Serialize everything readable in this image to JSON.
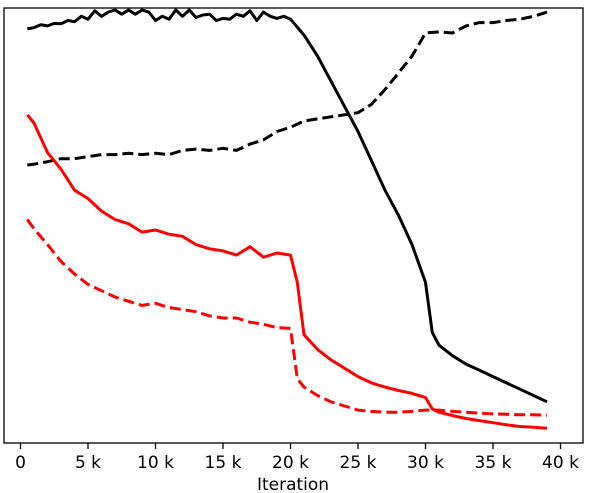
{
  "chart_data": {
    "type": "line",
    "title": "",
    "xlabel": "Iteration",
    "ylabel": "",
    "xlim": [
      -2000,
      40500
    ],
    "ylim": [
      0,
      1
    ],
    "grid": false,
    "legend": "none",
    "x_ticks": [
      {
        "value": 0,
        "label": "0"
      },
      {
        "value": 5000,
        "label": "5 k"
      },
      {
        "value": 10000,
        "label": "10 k"
      },
      {
        "value": 15000,
        "label": "15 k"
      },
      {
        "value": 20000,
        "label": "20 k"
      },
      {
        "value": 25000,
        "label": "25 k"
      },
      {
        "value": 30000,
        "label": "30 k"
      },
      {
        "value": 35000,
        "label": "35 k"
      },
      {
        "value": 40000,
        "label": "40 k"
      }
    ],
    "series": [
      {
        "color": "#000000",
        "dash": false,
        "points": [
          [
            500,
            0.955
          ],
          [
            1000,
            0.958
          ],
          [
            1500,
            0.965
          ],
          [
            2000,
            0.962
          ],
          [
            2500,
            0.968
          ],
          [
            3000,
            0.967
          ],
          [
            3500,
            0.975
          ],
          [
            4000,
            0.972
          ],
          [
            4500,
            0.985
          ],
          [
            5000,
            0.978
          ],
          [
            5500,
            0.998
          ],
          [
            6000,
            0.985
          ],
          [
            6500,
            0.995
          ],
          [
            7000,
            1.0
          ],
          [
            7500,
            0.99
          ],
          [
            8000,
            1.0
          ],
          [
            8500,
            0.99
          ],
          [
            9000,
            1.0
          ],
          [
            9500,
            0.995
          ],
          [
            10000,
            0.975
          ],
          [
            10500,
            0.985
          ],
          [
            11000,
            0.978
          ],
          [
            11500,
            1.0
          ],
          [
            12000,
            0.985
          ],
          [
            12500,
            1.0
          ],
          [
            13000,
            0.982
          ],
          [
            13500,
            0.988
          ],
          [
            14000,
            0.99
          ],
          [
            14500,
            0.975
          ],
          [
            15000,
            0.98
          ],
          [
            15500,
            0.978
          ],
          [
            16000,
            0.99
          ],
          [
            16500,
            0.985
          ],
          [
            17000,
            0.998
          ],
          [
            17500,
            0.975
          ],
          [
            18000,
            0.995
          ],
          [
            18500,
            0.985
          ],
          [
            19000,
            0.98
          ],
          [
            19500,
            0.985
          ],
          [
            20000,
            0.978
          ],
          [
            21000,
            0.94
          ],
          [
            22000,
            0.89
          ],
          [
            23000,
            0.83
          ],
          [
            24000,
            0.77
          ],
          [
            25000,
            0.71
          ],
          [
            26000,
            0.64
          ],
          [
            27000,
            0.57
          ],
          [
            28000,
            0.51
          ],
          [
            29000,
            0.44
          ],
          [
            30000,
            0.35
          ],
          [
            30500,
            0.23
          ],
          [
            31000,
            0.2
          ],
          [
            32000,
            0.175
          ],
          [
            33000,
            0.155
          ],
          [
            34000,
            0.14
          ],
          [
            35000,
            0.125
          ],
          [
            36000,
            0.11
          ],
          [
            37000,
            0.095
          ],
          [
            38000,
            0.08
          ],
          [
            39000,
            0.065
          ]
        ]
      },
      {
        "color": "#000000",
        "dash": true,
        "points": [
          [
            500,
            0.63
          ],
          [
            1000,
            0.632
          ],
          [
            2000,
            0.638
          ],
          [
            3000,
            0.645
          ],
          [
            4000,
            0.645
          ],
          [
            5000,
            0.65
          ],
          [
            6000,
            0.655
          ],
          [
            7000,
            0.655
          ],
          [
            8000,
            0.658
          ],
          [
            9000,
            0.655
          ],
          [
            10000,
            0.658
          ],
          [
            11000,
            0.655
          ],
          [
            12000,
            0.665
          ],
          [
            13000,
            0.668
          ],
          [
            14000,
            0.665
          ],
          [
            15000,
            0.67
          ],
          [
            16000,
            0.665
          ],
          [
            17000,
            0.68
          ],
          [
            18000,
            0.69
          ],
          [
            19000,
            0.71
          ],
          [
            20000,
            0.72
          ],
          [
            21000,
            0.735
          ],
          [
            22000,
            0.74
          ],
          [
            23000,
            0.745
          ],
          [
            24000,
            0.75
          ],
          [
            25000,
            0.755
          ],
          [
            26000,
            0.775
          ],
          [
            27000,
            0.81
          ],
          [
            28000,
            0.85
          ],
          [
            29000,
            0.89
          ],
          [
            30000,
            0.945
          ],
          [
            31000,
            0.948
          ],
          [
            32000,
            0.945
          ],
          [
            33000,
            0.962
          ],
          [
            34000,
            0.97
          ],
          [
            35000,
            0.97
          ],
          [
            36000,
            0.975
          ],
          [
            37000,
            0.978
          ],
          [
            38000,
            0.985
          ],
          [
            39000,
            0.995
          ]
        ]
      },
      {
        "color": "#ff0000",
        "dash": false,
        "points": [
          [
            500,
            0.75
          ],
          [
            1000,
            0.73
          ],
          [
            2000,
            0.66
          ],
          [
            3000,
            0.62
          ],
          [
            4000,
            0.57
          ],
          [
            5000,
            0.55
          ],
          [
            6000,
            0.52
          ],
          [
            7000,
            0.5
          ],
          [
            8000,
            0.49
          ],
          [
            9000,
            0.47
          ],
          [
            10000,
            0.475
          ],
          [
            11000,
            0.465
          ],
          [
            12000,
            0.46
          ],
          [
            13000,
            0.44
          ],
          [
            14000,
            0.43
          ],
          [
            15000,
            0.425
          ],
          [
            16000,
            0.415
          ],
          [
            17000,
            0.435
          ],
          [
            18000,
            0.41
          ],
          [
            19000,
            0.42
          ],
          [
            20000,
            0.415
          ],
          [
            20500,
            0.35
          ],
          [
            21000,
            0.225
          ],
          [
            22000,
            0.19
          ],
          [
            23000,
            0.165
          ],
          [
            24000,
            0.145
          ],
          [
            25000,
            0.125
          ],
          [
            26000,
            0.11
          ],
          [
            27000,
            0.1
          ],
          [
            28000,
            0.092
          ],
          [
            29000,
            0.085
          ],
          [
            30000,
            0.075
          ],
          [
            30500,
            0.048
          ],
          [
            31000,
            0.04
          ],
          [
            32000,
            0.032
          ],
          [
            33000,
            0.025
          ],
          [
            34000,
            0.02
          ],
          [
            35000,
            0.015
          ],
          [
            36000,
            0.01
          ],
          [
            37000,
            0.006
          ],
          [
            38000,
            0.004
          ],
          [
            39000,
            0.002
          ]
        ]
      },
      {
        "color": "#ff0000",
        "dash": true,
        "points": [
          [
            500,
            0.5
          ],
          [
            1000,
            0.478
          ],
          [
            2000,
            0.44
          ],
          [
            3000,
            0.4
          ],
          [
            4000,
            0.37
          ],
          [
            5000,
            0.345
          ],
          [
            6000,
            0.33
          ],
          [
            7000,
            0.315
          ],
          [
            8000,
            0.305
          ],
          [
            9000,
            0.295
          ],
          [
            10000,
            0.3
          ],
          [
            11000,
            0.29
          ],
          [
            12000,
            0.285
          ],
          [
            13000,
            0.28
          ],
          [
            14000,
            0.27
          ],
          [
            15000,
            0.265
          ],
          [
            16000,
            0.265
          ],
          [
            17000,
            0.255
          ],
          [
            18000,
            0.25
          ],
          [
            19000,
            0.242
          ],
          [
            20000,
            0.24
          ],
          [
            20500,
            0.12
          ],
          [
            21000,
            0.1
          ],
          [
            22000,
            0.08
          ],
          [
            23000,
            0.065
          ],
          [
            24000,
            0.055
          ],
          [
            25000,
            0.045
          ],
          [
            26000,
            0.042
          ],
          [
            27000,
            0.04
          ],
          [
            28000,
            0.04
          ],
          [
            29000,
            0.042
          ],
          [
            30000,
            0.045
          ],
          [
            31000,
            0.045
          ],
          [
            32000,
            0.042
          ],
          [
            33000,
            0.04
          ],
          [
            34000,
            0.038
          ],
          [
            35000,
            0.036
          ],
          [
            36000,
            0.035
          ],
          [
            37000,
            0.034
          ],
          [
            38000,
            0.034
          ],
          [
            39000,
            0.033
          ]
        ]
      }
    ]
  }
}
